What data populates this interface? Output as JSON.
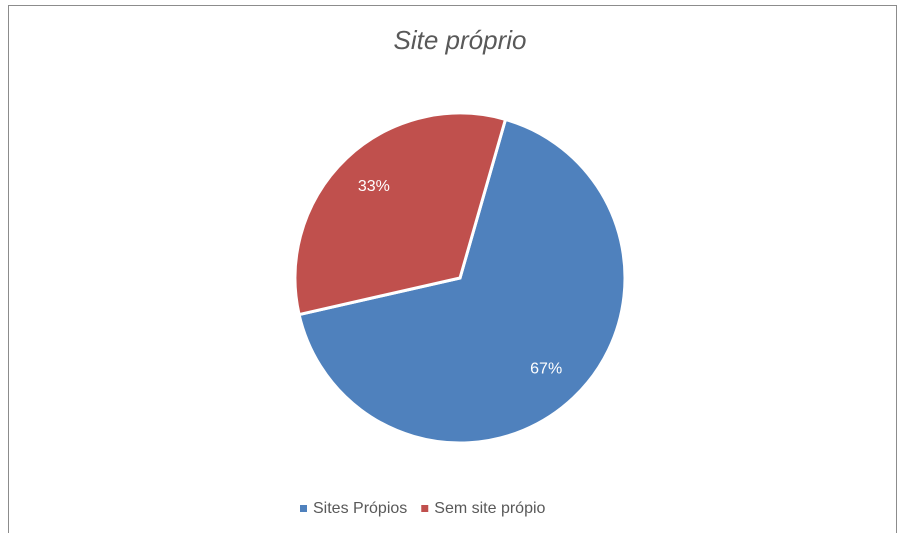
{
  "chart_data": {
    "type": "pie",
    "title": "Site próprio",
    "categories": [
      "Sites Própios",
      "Sem site própio"
    ],
    "values": [
      67,
      33
    ],
    "value_labels": [
      "67%",
      "33%"
    ],
    "colors": [
      "#4f81bd",
      "#c0504d"
    ],
    "legend": "bottom"
  }
}
